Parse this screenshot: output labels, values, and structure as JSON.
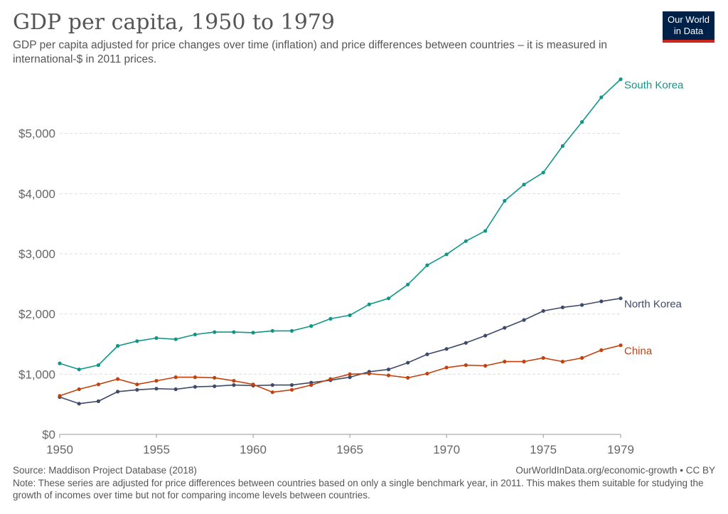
{
  "header": {
    "title": "GDP per capita, 1950 to 1979",
    "subtitle": "GDP per capita adjusted for price changes over time (inflation) and price differences between countries – it is measured in international-$ in 2011 prices.",
    "logo_line1": "Our World",
    "logo_line2": "in Data"
  },
  "footer": {
    "source": "Source: Maddison Project Database (2018)",
    "credit": "OurWorldInData.org/economic-growth • CC BY",
    "note": "Note: These series are adjusted for price differences between countries based on only a single benchmark year, in 2011. This makes them suitable for studying the growth of incomes over time but not for comparing income levels between countries."
  },
  "colors": {
    "south_korea": "#109688",
    "north_korea": "#3e4a6b",
    "china": "#c2410c",
    "grid": "#dddddd",
    "axis_text": "#666666"
  },
  "chart_data": {
    "type": "line",
    "title": "GDP per capita, 1950 to 1979",
    "xlabel": "",
    "ylabel": "",
    "xlim": [
      1950,
      1979
    ],
    "ylim": [
      0,
      6000
    ],
    "x_ticks": [
      1950,
      1955,
      1960,
      1965,
      1970,
      1975,
      1979
    ],
    "y_ticks": [
      0,
      1000,
      2000,
      3000,
      4000,
      5000
    ],
    "y_tick_labels": [
      "$0",
      "$1,000",
      "$2,000",
      "$3,000",
      "$4,000",
      "$5,000"
    ],
    "grid": true,
    "legend": "labels at line ends (right)",
    "x": [
      1950,
      1951,
      1952,
      1953,
      1954,
      1955,
      1956,
      1957,
      1958,
      1959,
      1960,
      1961,
      1962,
      1963,
      1964,
      1965,
      1966,
      1967,
      1968,
      1969,
      1970,
      1971,
      1972,
      1973,
      1974,
      1975,
      1976,
      1977,
      1978,
      1979
    ],
    "series": [
      {
        "name": "South Korea",
        "color_key": "south_korea",
        "values": [
          1180,
          1080,
          1150,
          1470,
          1550,
          1600,
          1580,
          1660,
          1700,
          1700,
          1690,
          1720,
          1720,
          1800,
          1920,
          1980,
          2160,
          2260,
          2490,
          2810,
          2990,
          3210,
          3380,
          3880,
          4150,
          4350,
          4790,
          5190,
          5600,
          5900
        ]
      },
      {
        "name": "North Korea",
        "color_key": "north_korea",
        "values": [
          620,
          510,
          550,
          710,
          740,
          760,
          750,
          790,
          800,
          820,
          810,
          820,
          820,
          860,
          900,
          950,
          1040,
          1080,
          1190,
          1330,
          1420,
          1520,
          1640,
          1770,
          1900,
          2050,
          2110,
          2150,
          2210,
          2260
        ]
      },
      {
        "name": "China",
        "color_key": "china",
        "values": [
          640,
          750,
          830,
          920,
          830,
          890,
          950,
          950,
          940,
          890,
          830,
          700,
          740,
          820,
          920,
          1000,
          1010,
          980,
          940,
          1010,
          1110,
          1150,
          1140,
          1210,
          1210,
          1270,
          1210,
          1270,
          1400,
          1480
        ]
      }
    ]
  }
}
